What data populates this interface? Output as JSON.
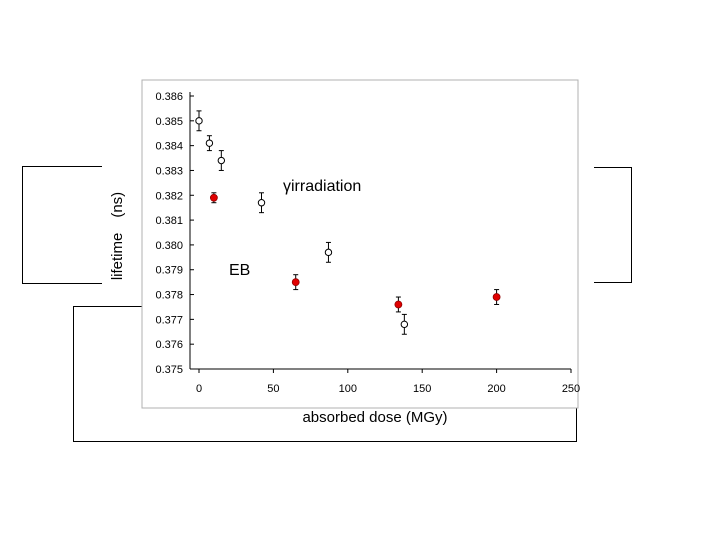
{
  "chart_data": {
    "type": "scatter",
    "title": "",
    "xlabel": "absorbed dose (MGy)",
    "ylabel": "lifetime　(ns)",
    "xlim": [
      0,
      250
    ],
    "ylim": [
      0.375,
      0.386
    ],
    "x_ticks": [
      "0",
      "50",
      "100",
      "150",
      "200",
      "250"
    ],
    "y_ticks": [
      "0.375",
      "0.376",
      "0.377",
      "0.378",
      "0.379",
      "0.380",
      "0.381",
      "0.382",
      "0.383",
      "0.384",
      "0.385",
      "0.386"
    ],
    "grid": false,
    "series": [
      {
        "name": "γirradiation",
        "marker": "open-circle",
        "color": "#ffffff",
        "points": [
          {
            "x": 0,
            "y": 0.385,
            "err": 0.0004
          },
          {
            "x": 7,
            "y": 0.3841,
            "err": 0.0003
          },
          {
            "x": 15,
            "y": 0.3834,
            "err": 0.0004
          },
          {
            "x": 42,
            "y": 0.3817,
            "err": 0.0004
          },
          {
            "x": 87,
            "y": 0.3797,
            "err": 0.0004
          },
          {
            "x": 138,
            "y": 0.3768,
            "err": 0.0004
          }
        ]
      },
      {
        "name": "EB",
        "marker": "filled-circle",
        "color": "#e00000",
        "points": [
          {
            "x": 10,
            "y": 0.3819,
            "err": 0.0002
          },
          {
            "x": 65,
            "y": 0.3785,
            "err": 0.0003
          },
          {
            "x": 134,
            "y": 0.3776,
            "err": 0.0003
          },
          {
            "x": 200,
            "y": 0.3779,
            "err": 0.0003
          }
        ]
      }
    ],
    "annotations": {
      "gamma": "γirradiation",
      "eb": "EB"
    }
  }
}
